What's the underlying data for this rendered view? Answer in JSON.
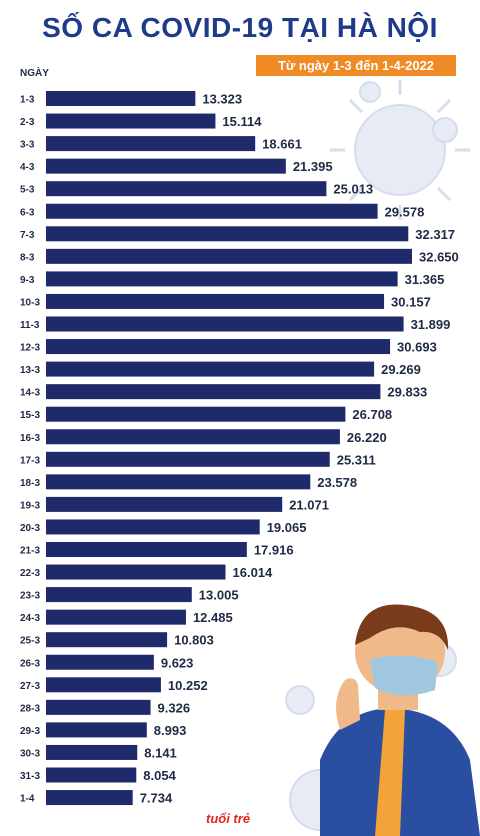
{
  "header": {
    "title": "SỐ CA COVID-19 TẠI HÀ NỘI",
    "subtitle": "Từ ngày 1-3 đến 1-4-2022",
    "axis_label": "NGÀY"
  },
  "logo": "tuổi trẻ",
  "colors": {
    "bar": "#1f2a6b",
    "title": "#1f3a8a",
    "badge": "#f08a24",
    "label": "#1f2a44"
  },
  "chart_data": {
    "type": "bar",
    "orientation": "horizontal",
    "title": "SỐ CA COVID-19 TẠI HÀ NỘI",
    "subtitle": "Từ ngày 1-3 đến 1-4-2022",
    "xlabel": "",
    "ylabel": "NGÀY",
    "grid": false,
    "categories": [
      "1-3",
      "2-3",
      "3-3",
      "4-3",
      "5-3",
      "6-3",
      "7-3",
      "8-3",
      "9-3",
      "10-3",
      "11-3",
      "12-3",
      "13-3",
      "14-3",
      "15-3",
      "16-3",
      "17-3",
      "18-3",
      "19-3",
      "20-3",
      "21-3",
      "22-3",
      "23-3",
      "24-3",
      "25-3",
      "26-3",
      "27-3",
      "28-3",
      "29-3",
      "30-3",
      "31-3",
      "1-4"
    ],
    "values": [
      13323,
      15114,
      18661,
      21395,
      25013,
      29578,
      32317,
      32650,
      31365,
      30157,
      31899,
      30693,
      29269,
      29833,
      26708,
      26220,
      25311,
      23578,
      21071,
      19065,
      17916,
      16014,
      13005,
      12485,
      10803,
      9623,
      10252,
      9326,
      8993,
      8141,
      8054,
      7734
    ],
    "value_labels": [
      "13.323",
      "15.114",
      "18.661",
      "21.395",
      "25.013",
      "29.578",
      "32.317",
      "32.650",
      "31.365",
      "30.157",
      "31.899",
      "30.693",
      "29.269",
      "29.833",
      "26.708",
      "26.220",
      "25.311",
      "23.578",
      "21.071",
      "19.065",
      "17.916",
      "16.014",
      "13.005",
      "12.485",
      "10.803",
      "9.623",
      "10.252",
      "9.326",
      "8.993",
      "8.141",
      "8.054",
      "7.734"
    ]
  }
}
